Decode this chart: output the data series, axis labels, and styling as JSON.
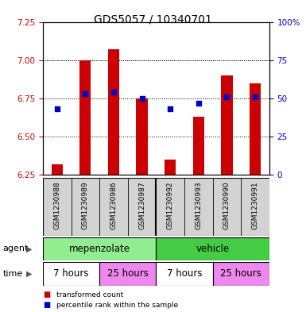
{
  "title": "GDS5057 / 10340701",
  "samples": [
    "GSM1230988",
    "GSM1230989",
    "GSM1230986",
    "GSM1230987",
    "GSM1230992",
    "GSM1230993",
    "GSM1230990",
    "GSM1230991"
  ],
  "red_values": [
    6.32,
    7.0,
    7.07,
    6.75,
    6.35,
    6.63,
    6.9,
    6.85
  ],
  "blue_values": [
    6.68,
    6.78,
    6.79,
    6.75,
    6.68,
    6.72,
    6.76,
    6.76
  ],
  "ylim_left": [
    6.25,
    7.25
  ],
  "ylim_right": [
    0,
    100
  ],
  "yticks_left": [
    6.25,
    6.5,
    6.75,
    7.0,
    7.25
  ],
  "yticks_right": [
    0,
    25,
    50,
    75,
    100
  ],
  "bar_color": "#CC0000",
  "dot_color": "#0000CC",
  "bar_bottom": 6.25,
  "agent_groups": [
    {
      "label": "mepenzolate",
      "start": 0,
      "end": 4,
      "color": "#90EE90"
    },
    {
      "label": "vehicle",
      "start": 4,
      "end": 8,
      "color": "#44CC44"
    }
  ],
  "time_groups": [
    {
      "label": "7 hours",
      "start": 0,
      "end": 2,
      "color": "#FFFFFF"
    },
    {
      "label": "25 hours",
      "start": 2,
      "end": 4,
      "color": "#EE88EE"
    },
    {
      "label": "7 hours",
      "start": 4,
      "end": 6,
      "color": "#FFFFFF"
    },
    {
      "label": "25 hours",
      "start": 6,
      "end": 8,
      "color": "#EE88EE"
    }
  ],
  "legend_items": [
    {
      "label": "transformed count",
      "color": "#CC0000"
    },
    {
      "label": "percentile rank within the sample",
      "color": "#0000CC"
    }
  ],
  "title_fontsize": 10,
  "tick_fontsize": 7.5,
  "sample_fontsize": 6.5,
  "group_fontsize": 8.5,
  "label_fontsize": 8
}
